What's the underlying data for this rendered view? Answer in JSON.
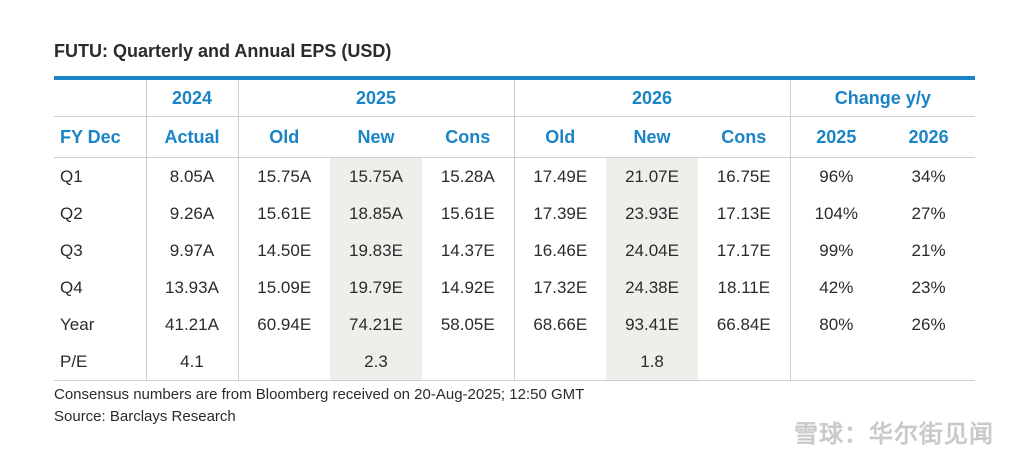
{
  "title": "FUTU: Quarterly and Annual EPS (USD)",
  "header_row1": {
    "y2024": "2024",
    "y2025": "2025",
    "y2026": "2026",
    "change": "Change y/y"
  },
  "header_row2": [
    "FY Dec",
    "Actual",
    "Old",
    "New",
    "Cons",
    "Old",
    "New",
    "Cons",
    "2025",
    "2026"
  ],
  "rows": [
    {
      "label": "Q1",
      "cells": [
        "8.05A",
        "15.75A",
        "15.75A",
        "15.28A",
        "17.49E",
        "21.07E",
        "16.75E",
        "96%",
        "34%"
      ]
    },
    {
      "label": "Q2",
      "cells": [
        "9.26A",
        "15.61E",
        "18.85A",
        "15.61E",
        "17.39E",
        "23.93E",
        "17.13E",
        "104%",
        "27%"
      ]
    },
    {
      "label": "Q3",
      "cells": [
        "9.97A",
        "14.50E",
        "19.83E",
        "14.37E",
        "16.46E",
        "24.04E",
        "17.17E",
        "99%",
        "21%"
      ]
    },
    {
      "label": "Q4",
      "cells": [
        "13.93A",
        "15.09E",
        "19.79E",
        "14.92E",
        "17.32E",
        "24.38E",
        "18.11E",
        "42%",
        "23%"
      ]
    },
    {
      "label": "Year",
      "cells": [
        "41.21A",
        "60.94E",
        "74.21E",
        "58.05E",
        "68.66E",
        "93.41E",
        "66.84E",
        "80%",
        "26%"
      ]
    },
    {
      "label": "P/E",
      "cells": [
        "4.1",
        "",
        "2.3",
        "",
        "",
        "1.8",
        "",
        "",
        ""
      ]
    }
  ],
  "footer": {
    "note": "Consensus numbers are from Bloomberg received on 20-Aug-2025; 12:50 GMT",
    "source": "Source: Barclays Research"
  },
  "watermark": "雪球：华尔街见闻",
  "colors": {
    "accent": "#1a84c6",
    "shade": "#efeeeb",
    "rule": "#cfcfcf"
  }
}
